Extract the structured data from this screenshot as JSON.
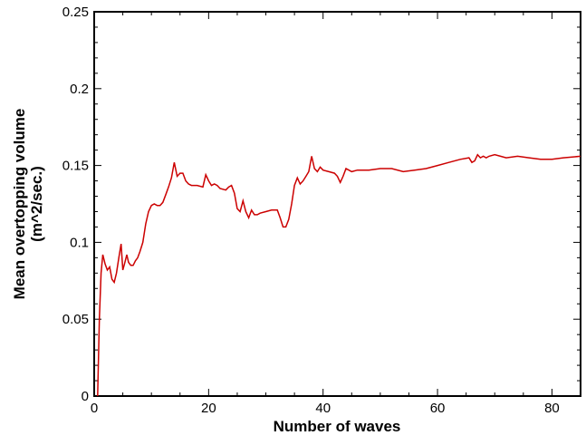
{
  "chart_data": {
    "type": "line",
    "title": "",
    "xlabel": "Number of waves",
    "ylabel": [
      "Mean overtopping volume",
      "(m^2/sec.)"
    ],
    "xlim": [
      0,
      85
    ],
    "ylim": [
      0,
      0.25
    ],
    "xticks": [
      0,
      20,
      40,
      60,
      80
    ],
    "xtick_labels": [
      "0",
      "20",
      "40",
      "60",
      "80"
    ],
    "yticks": [
      0,
      0.05,
      0.1,
      0.15,
      0.2,
      0.25
    ],
    "ytick_labels": [
      "0",
      "0.05",
      "0.1",
      "0.15",
      "0.2",
      "0.25"
    ],
    "grid": false,
    "line_color": "#cc0000",
    "series": [
      {
        "x": [
          0.6,
          0.9,
          1.2,
          1.5,
          1.9,
          2.3,
          2.7,
          3.1,
          3.5,
          3.9,
          4.3,
          4.7,
          5.0,
          5.3,
          5.7,
          6.0,
          6.4,
          6.8,
          7.2,
          7.6,
          8.0,
          8.5,
          9.0,
          9.5,
          10.0,
          10.5,
          11.0,
          11.5,
          12.0,
          12.5,
          13.0,
          13.5,
          14.0,
          14.5,
          15.0,
          15.5,
          16.0,
          16.5,
          17.0,
          18.0,
          19.0,
          19.5,
          20.0,
          20.5,
          21.0,
          21.5,
          22.0,
          23.0,
          23.5,
          24.0,
          24.5,
          25.0,
          25.5,
          26.0,
          26.5,
          27.0,
          27.5,
          28.0,
          28.5,
          29.0,
          30.0,
          31.0,
          32.0,
          32.5,
          33.0,
          33.5,
          34.0,
          34.5,
          35.0,
          35.5,
          36.0,
          36.5,
          37.0,
          37.5,
          38.0,
          38.5,
          39.0,
          39.5,
          40.0,
          41.0,
          42.0,
          42.5,
          43.0,
          43.5,
          44.0,
          45.0,
          46.0,
          48.0,
          50.0,
          52.0,
          54.0,
          56.0,
          58.0,
          60.0,
          62.0,
          64.0,
          65.5,
          66.0,
          66.5,
          67.0,
          67.5,
          68.0,
          68.5,
          69.0,
          70.0,
          71.0,
          72.0,
          74.0,
          76.0,
          78.0,
          80.0,
          82.0,
          85.0
        ],
        "y": [
          0.0,
          0.05,
          0.08,
          0.092,
          0.086,
          0.082,
          0.084,
          0.076,
          0.074,
          0.08,
          0.09,
          0.099,
          0.082,
          0.086,
          0.092,
          0.087,
          0.085,
          0.085,
          0.088,
          0.09,
          0.094,
          0.1,
          0.112,
          0.12,
          0.124,
          0.125,
          0.124,
          0.124,
          0.126,
          0.131,
          0.136,
          0.142,
          0.152,
          0.143,
          0.145,
          0.145,
          0.14,
          0.138,
          0.137,
          0.137,
          0.136,
          0.144,
          0.14,
          0.137,
          0.138,
          0.137,
          0.135,
          0.134,
          0.136,
          0.137,
          0.132,
          0.122,
          0.12,
          0.127,
          0.12,
          0.116,
          0.121,
          0.118,
          0.118,
          0.119,
          0.12,
          0.121,
          0.121,
          0.116,
          0.11,
          0.11,
          0.115,
          0.125,
          0.137,
          0.142,
          0.138,
          0.14,
          0.143,
          0.146,
          0.156,
          0.148,
          0.146,
          0.149,
          0.147,
          0.146,
          0.145,
          0.143,
          0.139,
          0.143,
          0.148,
          0.146,
          0.147,
          0.147,
          0.148,
          0.148,
          0.146,
          0.147,
          0.148,
          0.15,
          0.152,
          0.154,
          0.155,
          0.152,
          0.153,
          0.157,
          0.155,
          0.156,
          0.155,
          0.156,
          0.157,
          0.156,
          0.155,
          0.156,
          0.155,
          0.154,
          0.154,
          0.155,
          0.156
        ]
      }
    ]
  }
}
